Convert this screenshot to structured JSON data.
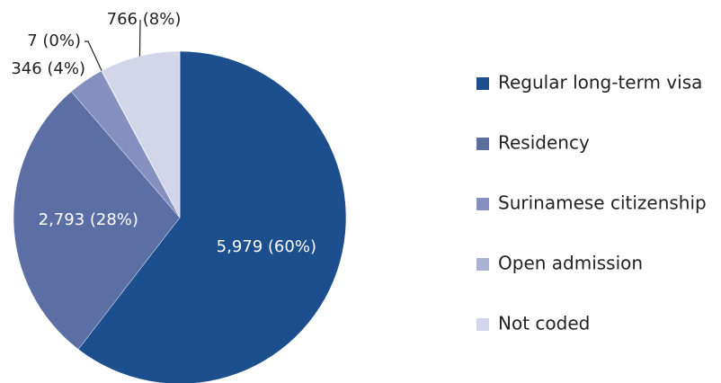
{
  "chart_data": {
    "type": "pie",
    "categories": [
      "Regular long-term visa",
      "Residency",
      "Surinamese citizenship",
      "Open admission",
      "Not coded"
    ],
    "values": [
      5979,
      2793,
      346,
      7,
      766
    ],
    "value_labels": [
      "5,979 (60%)",
      "2,793 (28%)",
      "346 (4%)",
      "7 (0%)",
      "766 (8%)"
    ],
    "colors": [
      "#1d4f8e",
      "#5c6fa5",
      "#8590c0",
      "#aab2d4",
      "#d3d6e9"
    ]
  }
}
